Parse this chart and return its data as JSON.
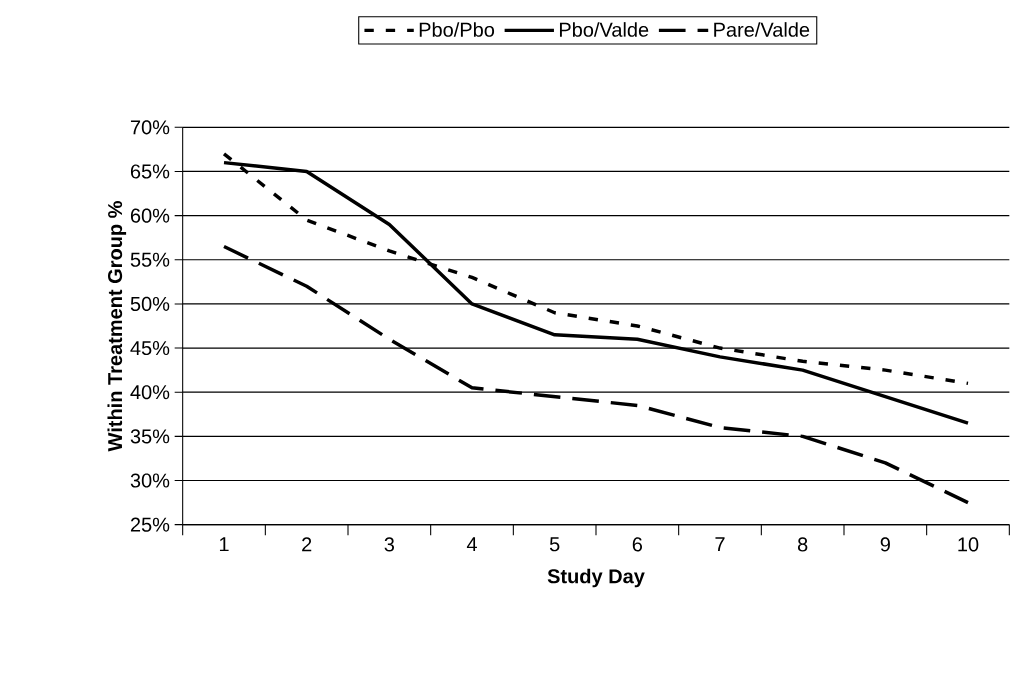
{
  "chart_data": {
    "type": "line",
    "xlabel": "Study Day",
    "ylabel": "Within Treatment Group %",
    "categories": [
      "1",
      "2",
      "3",
      "4",
      "5",
      "6",
      "7",
      "8",
      "9",
      "10"
    ],
    "series": [
      {
        "name": "Pbo/Pbo",
        "color": "#000000",
        "line_style": "dotted",
        "values": [
          67,
          59.5,
          56,
          53,
          49,
          47.5,
          45,
          43.5,
          42.5,
          41
        ]
      },
      {
        "name": "Pbo/Valde",
        "color": "#000000",
        "line_style": "solid",
        "values": [
          66,
          65,
          59,
          50,
          46.5,
          46,
          44,
          42.5,
          39.5,
          36.5
        ]
      },
      {
        "name": "Pare/Valde",
        "color": "#000000",
        "line_style": "dashed",
        "values": [
          56.5,
          52,
          46,
          40.5,
          39.5,
          38.5,
          36,
          35,
          32,
          27.5
        ]
      }
    ],
    "ylim": [
      25,
      70
    ],
    "yticks": [
      {
        "value": 25,
        "label": "25%"
      },
      {
        "value": 30,
        "label": "30%"
      },
      {
        "value": 35,
        "label": "35%"
      },
      {
        "value": 40,
        "label": "40%"
      },
      {
        "value": 45,
        "label": "45%"
      },
      {
        "value": 50,
        "label": "50%"
      },
      {
        "value": 55,
        "label": "55%"
      },
      {
        "value": 60,
        "label": "60%"
      },
      {
        "value": 65,
        "label": "65%"
      },
      {
        "value": 70,
        "label": "70%"
      }
    ],
    "grid": "y",
    "legend": "top",
    "marker": "none"
  }
}
